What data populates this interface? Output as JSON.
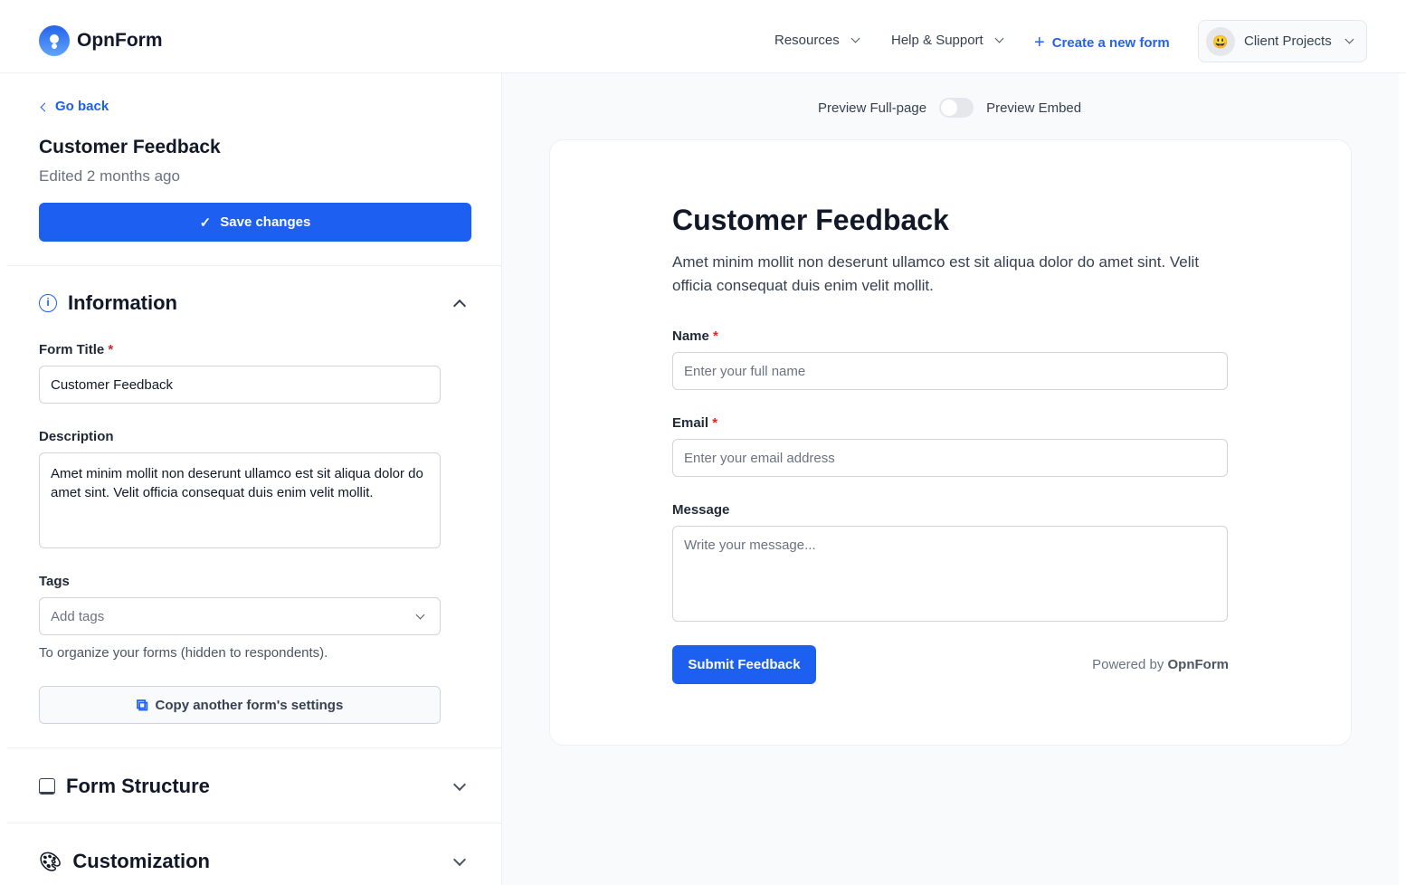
{
  "header": {
    "brand": "OpnForm",
    "nav": [
      {
        "label": "Resources"
      },
      {
        "label": "Help & Support"
      }
    ],
    "create_label": "Create a new form",
    "workspace": {
      "emoji": "😃",
      "name": "Client Projects"
    }
  },
  "sidebar": {
    "back_label": "Go back",
    "form_name": "Customer Feedback",
    "edited": "Edited 2 months ago",
    "save_label": "Save changes",
    "information": {
      "title": "Information",
      "form_title_label": "Form Title",
      "form_title_value": "Customer Feedback",
      "description_label": "Description",
      "description_value": "Amet minim mollit non deserunt ullamco est sit aliqua dolor do amet sint. Velit officia consequat duis enim velit mollit.",
      "tags_label": "Tags",
      "tags_placeholder": "Add tags",
      "tags_help": "To organize your forms (hidden to respondents).",
      "copy_label": "Copy another form's settings"
    },
    "sections": [
      {
        "title": "Form Structure"
      },
      {
        "title": "Customization"
      }
    ]
  },
  "preview": {
    "toggle_left": "Preview Full-page",
    "toggle_right": "Preview Embed",
    "toggle_on": false,
    "title": "Customer Feedback",
    "description": "Amet minim mollit non deserunt ullamco est sit aliqua dolor do amet sint. Velit officia consequat duis enim velit mollit.",
    "fields": [
      {
        "label": "Name",
        "required": "*",
        "placeholder": "Enter your full name"
      },
      {
        "label": "Email",
        "required": "*",
        "placeholder": "Enter your email address"
      },
      {
        "label": "Message",
        "placeholder": "Write your message..."
      }
    ],
    "submit_label": "Submit Feedback",
    "powered_by": "Powered by",
    "powered_brand": "OpnForm"
  },
  "colors": {
    "accent": "#1d5ff0",
    "required": "#dc2626"
  }
}
